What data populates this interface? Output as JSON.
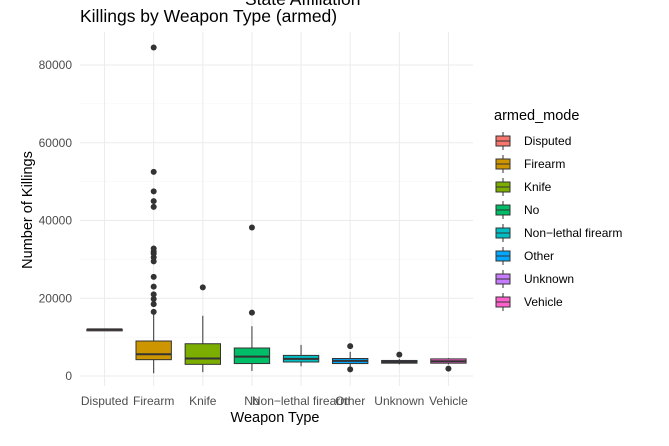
{
  "chart_data": {
    "type": "box",
    "title": "Killings by Weapon Type (armed)",
    "title_above_partial": "State Affiliation",
    "xlabel": "Weapon Type",
    "ylabel": "Number of Killings",
    "ylim": [
      -2500,
      88000
    ],
    "yticks": [
      0,
      20000,
      40000,
      60000,
      80000
    ],
    "ytick_labels": [
      "0",
      "20000",
      "40000",
      "60000",
      "80000"
    ],
    "grid": true,
    "legend_title": "armed_mode",
    "legend_position": "right",
    "categories": [
      "Disputed",
      "Firearm",
      "Knife",
      "No",
      "Non−lethal firearm",
      "Other",
      "Unknown",
      "Vehicle"
    ],
    "colors": [
      "#F8766D",
      "#CD9600",
      "#7CAE00",
      "#00BE67",
      "#00BFC4",
      "#00A9FF",
      "#C77CFF",
      "#FF61CC"
    ],
    "boxes": [
      {
        "category": "Disputed",
        "min": 12000,
        "q1": 12000,
        "median": 12000,
        "q3": 12000,
        "max": 12000,
        "outliers": []
      },
      {
        "category": "Firearm",
        "min": 700,
        "q1": 4200,
        "median": 5600,
        "q3": 9000,
        "max": 16000,
        "outliers": [
          16500,
          18500,
          19800,
          21000,
          23000,
          25500,
          29500,
          30500,
          31500,
          32000,
          32800,
          43500,
          45000,
          47500,
          52500,
          84500
        ]
      },
      {
        "category": "Knife",
        "min": 1000,
        "q1": 3000,
        "median": 4500,
        "q3": 8300,
        "max": 15500,
        "outliers": [
          22800
        ]
      },
      {
        "category": "No",
        "min": 1300,
        "q1": 3200,
        "median": 5000,
        "q3": 7200,
        "max": 12800,
        "outliers": [
          16300,
          38200
        ]
      },
      {
        "category": "Non−lethal firearm",
        "min": 2500,
        "q1": 3600,
        "median": 4400,
        "q3": 5300,
        "max": 8000,
        "outliers": []
      },
      {
        "category": "Other",
        "min": 2300,
        "q1": 3200,
        "median": 3900,
        "q3": 4500,
        "max": 6200,
        "outliers": [
          1700,
          7700
        ]
      },
      {
        "category": "Unknown",
        "min": 3000,
        "q1": 3300,
        "median": 3600,
        "q3": 4000,
        "max": 4400,
        "outliers": [
          5500
        ]
      },
      {
        "category": "Vehicle",
        "min": 3000,
        "q1": 3300,
        "median": 3800,
        "q3": 4400,
        "max": 4600,
        "outliers": [
          1900
        ]
      }
    ]
  }
}
